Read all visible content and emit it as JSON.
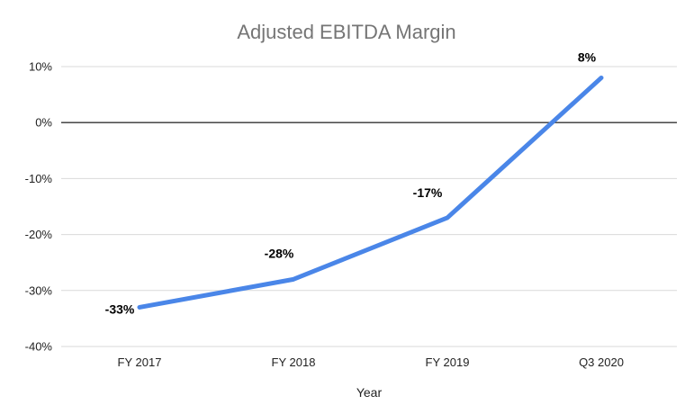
{
  "chart_data": {
    "type": "line",
    "title": "Adjusted EBITDA Margin",
    "xlabel": "Year",
    "ylabel": "",
    "categories": [
      "FY 2017",
      "FY 2018",
      "FY 2019",
      "Q3 2020"
    ],
    "series": [
      {
        "values": [
          -33,
          -28,
          -17,
          8
        ],
        "color": "#4a86e8"
      }
    ],
    "data_labels": [
      "-33%",
      "-28%",
      "-17%",
      "8%"
    ],
    "y_ticks": [
      10,
      0,
      -10,
      -20,
      -30,
      -40
    ],
    "y_tick_labels": [
      "10%",
      "0%",
      "-10%",
      "-20%",
      "-30%",
      "-40%"
    ],
    "ylim": [
      -40,
      10
    ],
    "grid": true,
    "legend": "none"
  }
}
